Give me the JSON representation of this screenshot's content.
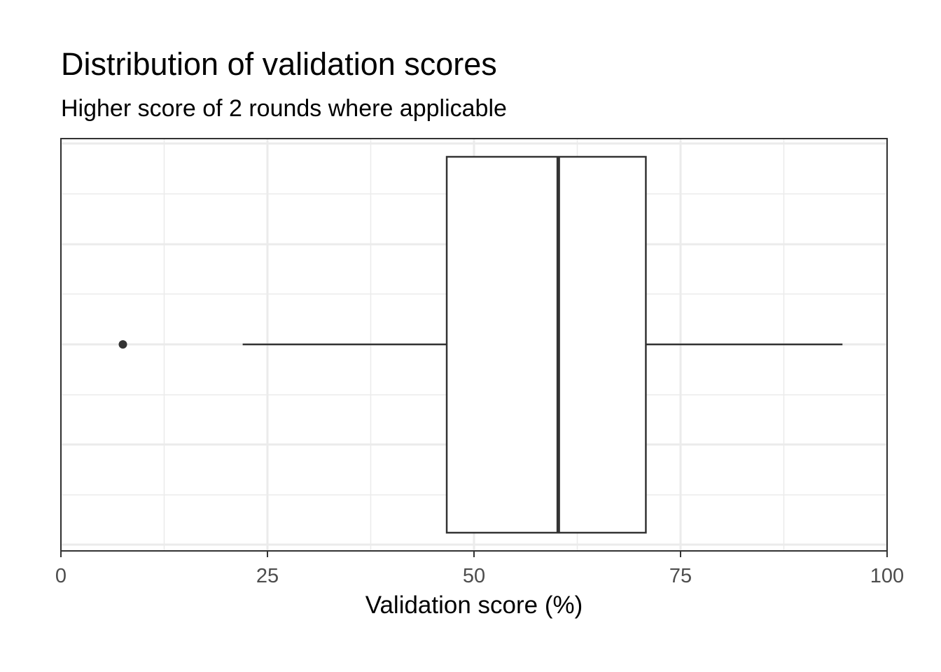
{
  "chart_data": {
    "type": "boxplot",
    "title": "Distribution of validation scores",
    "subtitle": "Higher score of 2 rounds where applicable",
    "xlabel": "Validation score (%)",
    "ylabel": "",
    "xlim": [
      0,
      100
    ],
    "x_ticks": [
      0,
      25,
      50,
      75,
      100
    ],
    "x_tick_labels": [
      "0",
      "25",
      "50",
      "75",
      "100"
    ],
    "x_minor_ticks": [
      12.5,
      37.5,
      62.5,
      87.5
    ],
    "grid": true,
    "box": {
      "whisker_low": 22,
      "q1": 46.7,
      "median": 60.2,
      "q3": 70.8,
      "whisker_high": 94.6,
      "outliers": [
        7.5
      ]
    },
    "colors": {
      "grid": "#ebebeb",
      "box_line": "#333333",
      "box_fill": "#ffffff",
      "panel_border": "#333333"
    }
  }
}
